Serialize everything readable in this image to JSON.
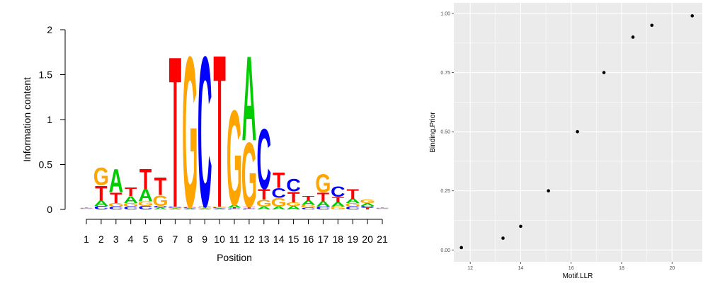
{
  "colors": {
    "A": "#00cc00",
    "C": "#0000ff",
    "G": "#ffa500",
    "T": "#ff0000",
    "panel_bg": "#ebebeb",
    "grid": "#ffffff",
    "point": "#000000"
  },
  "chart_data": [
    {
      "type": "sequence-logo",
      "title": "",
      "xlabel": "Position",
      "ylabel": "Information content",
      "ylim": [
        0,
        2
      ],
      "y_ticks": [
        "0",
        "0.5",
        "1",
        "1.5",
        "2"
      ],
      "x_ticks": [
        "1",
        "2",
        "3",
        "4",
        "5",
        "6",
        "7",
        "8",
        "9",
        "10",
        "11",
        "12",
        "13",
        "14",
        "15",
        "16",
        "17",
        "18",
        "19",
        "20",
        "21"
      ],
      "positions": [
        {
          "pos": 1,
          "letters": [
            {
              "l": "A",
              "h": 0.006
            },
            {
              "l": "C",
              "h": 0.006
            },
            {
              "l": "G",
              "h": 0.006
            },
            {
              "l": "T",
              "h": 0.006
            }
          ]
        },
        {
          "pos": 2,
          "letters": [
            {
              "l": "C",
              "h": 0.04
            },
            {
              "l": "A",
              "h": 0.06
            },
            {
              "l": "T",
              "h": 0.17
            },
            {
              "l": "G",
              "h": 0.2
            }
          ]
        },
        {
          "pos": 3,
          "letters": [
            {
              "l": "C",
              "h": 0.03
            },
            {
              "l": "G",
              "h": 0.04
            },
            {
              "l": "T",
              "h": 0.12
            },
            {
              "l": "A",
              "h": 0.27
            }
          ]
        },
        {
          "pos": 4,
          "letters": [
            {
              "l": "C",
              "h": 0.03
            },
            {
              "l": "G",
              "h": 0.04
            },
            {
              "l": "A",
              "h": 0.08
            },
            {
              "l": "T",
              "h": 0.1
            }
          ]
        },
        {
          "pos": 5,
          "letters": [
            {
              "l": "C",
              "h": 0.04
            },
            {
              "l": "G",
              "h": 0.05
            },
            {
              "l": "A",
              "h": 0.14
            },
            {
              "l": "T",
              "h": 0.23
            }
          ]
        },
        {
          "pos": 6,
          "letters": [
            {
              "l": "A",
              "h": 0.02
            },
            {
              "l": "C",
              "h": 0.02
            },
            {
              "l": "G",
              "h": 0.12
            },
            {
              "l": "T",
              "h": 0.2
            }
          ]
        },
        {
          "pos": 7,
          "letters": [
            {
              "l": "A",
              "h": 0.01
            },
            {
              "l": "G",
              "h": 0.01
            },
            {
              "l": "C",
              "h": 0.01
            },
            {
              "l": "T",
              "h": 1.73
            }
          ]
        },
        {
          "pos": 8,
          "letters": [
            {
              "l": "A",
              "h": 0.01
            },
            {
              "l": "C",
              "h": 0.01
            },
            {
              "l": "T",
              "h": 0.01
            },
            {
              "l": "G",
              "h": 1.73
            }
          ]
        },
        {
          "pos": 9,
          "letters": [
            {
              "l": "A",
              "h": 0.01
            },
            {
              "l": "G",
              "h": 0.01
            },
            {
              "l": "T",
              "h": 0.02
            },
            {
              "l": "C",
              "h": 1.72
            }
          ]
        },
        {
          "pos": 10,
          "letters": [
            {
              "l": "A",
              "h": 0.01
            },
            {
              "l": "C",
              "h": 0.01
            },
            {
              "l": "G",
              "h": 0.01
            },
            {
              "l": "T",
              "h": 1.75
            }
          ]
        },
        {
          "pos": 11,
          "letters": [
            {
              "l": "C",
              "h": 0.01
            },
            {
              "l": "T",
              "h": 0.01
            },
            {
              "l": "A",
              "h": 0.03
            },
            {
              "l": "G",
              "h": 1.09
            }
          ]
        },
        {
          "pos": 12,
          "letters": [
            {
              "l": "C",
              "h": 0.01
            },
            {
              "l": "T",
              "h": 0.02
            },
            {
              "l": "G",
              "h": 0.74
            },
            {
              "l": "A",
              "h": 0.97
            }
          ]
        },
        {
          "pos": 13,
          "letters": [
            {
              "l": "A",
              "h": 0.03
            },
            {
              "l": "G",
              "h": 0.08
            },
            {
              "l": "T",
              "h": 0.12
            },
            {
              "l": "C",
              "h": 0.69
            }
          ]
        },
        {
          "pos": 14,
          "letters": [
            {
              "l": "A",
              "h": 0.03
            },
            {
              "l": "G",
              "h": 0.1
            },
            {
              "l": "C",
              "h": 0.11
            },
            {
              "l": "T",
              "h": 0.18
            }
          ]
        },
        {
          "pos": 15,
          "letters": [
            {
              "l": "A",
              "h": 0.04
            },
            {
              "l": "G",
              "h": 0.04
            },
            {
              "l": "T",
              "h": 0.12
            },
            {
              "l": "C",
              "h": 0.14
            }
          ]
        },
        {
          "pos": 16,
          "letters": [
            {
              "l": "C",
              "h": 0.02
            },
            {
              "l": "G",
              "h": 0.03
            },
            {
              "l": "A",
              "h": 0.05
            },
            {
              "l": "T",
              "h": 0.05
            }
          ]
        },
        {
          "pos": 17,
          "letters": [
            {
              "l": "C",
              "h": 0.03
            },
            {
              "l": "A",
              "h": 0.06
            },
            {
              "l": "T",
              "h": 0.1
            },
            {
              "l": "G",
              "h": 0.21
            }
          ]
        },
        {
          "pos": 18,
          "letters": [
            {
              "l": "G",
              "h": 0.03
            },
            {
              "l": "A",
              "h": 0.05
            },
            {
              "l": "T",
              "h": 0.06
            },
            {
              "l": "C",
              "h": 0.12
            }
          ]
        },
        {
          "pos": 19,
          "letters": [
            {
              "l": "C",
              "h": 0.03
            },
            {
              "l": "G",
              "h": 0.04
            },
            {
              "l": "A",
              "h": 0.05
            },
            {
              "l": "T",
              "h": 0.11
            }
          ]
        },
        {
          "pos": 20,
          "letters": [
            {
              "l": "T",
              "h": 0.02
            },
            {
              "l": "C",
              "h": 0.02
            },
            {
              "l": "A",
              "h": 0.03
            },
            {
              "l": "G",
              "h": 0.04
            }
          ]
        },
        {
          "pos": 21,
          "letters": [
            {
              "l": "A",
              "h": 0.006
            },
            {
              "l": "C",
              "h": 0.006
            },
            {
              "l": "G",
              "h": 0.006
            },
            {
              "l": "T",
              "h": 0.006
            }
          ]
        }
      ]
    },
    {
      "type": "scatter",
      "title": "",
      "xlabel": "Motif.LLR",
      "ylabel": "Binding.Prior",
      "xlim": [
        11.35,
        21.2
      ],
      "ylim": [
        -0.05,
        1.045
      ],
      "x_ticks": [
        12,
        14,
        16,
        18,
        20
      ],
      "x_tick_labels": [
        "12",
        "14",
        "16",
        "18",
        "20"
      ],
      "y_ticks": [
        0,
        0.25,
        0.5,
        0.75,
        1
      ],
      "y_tick_labels": [
        "0.00",
        "0.25",
        "0.50",
        "0.75",
        "1.00"
      ],
      "grid": true,
      "points": [
        {
          "x": 11.65,
          "y": 0.01
        },
        {
          "x": 13.3,
          "y": 0.05
        },
        {
          "x": 14.0,
          "y": 0.1
        },
        {
          "x": 15.1,
          "y": 0.25
        },
        {
          "x": 16.25,
          "y": 0.5
        },
        {
          "x": 17.3,
          "y": 0.75
        },
        {
          "x": 18.45,
          "y": 0.9
        },
        {
          "x": 19.2,
          "y": 0.95
        },
        {
          "x": 20.8,
          "y": 0.99
        }
      ]
    }
  ]
}
